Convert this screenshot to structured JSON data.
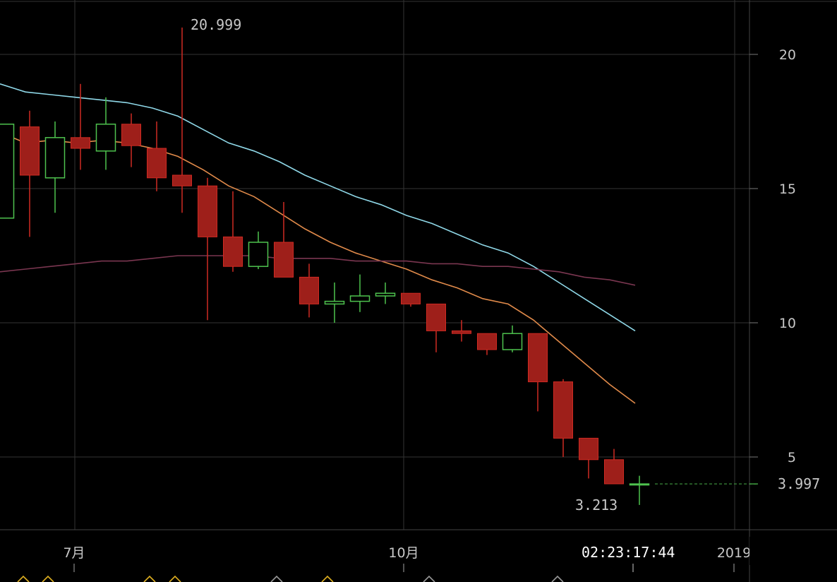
{
  "chart_data": {
    "type": "candlestick",
    "y_axis": {
      "ticks": [
        5,
        10,
        15,
        20
      ],
      "range": [
        0.3,
        22
      ]
    },
    "x_axis": {
      "labels": [
        "7月",
        "10月",
        "2019"
      ]
    },
    "candles": [
      {
        "o": 13.9,
        "h": 17.4,
        "l": 13.9,
        "c": 17.4
      },
      {
        "o": 17.3,
        "h": 17.9,
        "l": 13.2,
        "c": 15.5
      },
      {
        "o": 15.4,
        "h": 17.5,
        "l": 14.1,
        "c": 16.9
      },
      {
        "o": 16.9,
        "h": 18.9,
        "l": 15.7,
        "c": 16.5
      },
      {
        "o": 16.4,
        "h": 18.4,
        "l": 15.7,
        "c": 17.4
      },
      {
        "o": 17.4,
        "h": 17.8,
        "l": 15.8,
        "c": 16.6
      },
      {
        "o": 16.5,
        "h": 17.5,
        "l": 14.9,
        "c": 15.4
      },
      {
        "o": 15.5,
        "h": 20.999,
        "l": 14.1,
        "c": 15.1
      },
      {
        "o": 15.1,
        "h": 15.4,
        "l": 10.1,
        "c": 13.2
      },
      {
        "o": 13.2,
        "h": 14.9,
        "l": 11.9,
        "c": 12.1
      },
      {
        "o": 12.1,
        "h": 13.4,
        "l": 12.0,
        "c": 13.0
      },
      {
        "o": 13.0,
        "h": 14.5,
        "l": 11.7,
        "c": 11.7
      },
      {
        "o": 11.7,
        "h": 12.2,
        "l": 10.2,
        "c": 10.7
      },
      {
        "o": 10.7,
        "h": 11.5,
        "l": 10.0,
        "c": 10.8
      },
      {
        "o": 10.8,
        "h": 11.8,
        "l": 10.4,
        "c": 11.0
      },
      {
        "o": 11.0,
        "h": 11.5,
        "l": 10.7,
        "c": 11.1
      },
      {
        "o": 11.1,
        "h": 11.1,
        "l": 10.6,
        "c": 10.7
      },
      {
        "o": 10.7,
        "h": 10.7,
        "l": 8.9,
        "c": 9.7
      },
      {
        "o": 9.7,
        "h": 10.1,
        "l": 9.3,
        "c": 9.6
      },
      {
        "o": 9.6,
        "h": 9.6,
        "l": 8.8,
        "c": 9.0
      },
      {
        "o": 9.0,
        "h": 9.9,
        "l": 8.9,
        "c": 9.6
      },
      {
        "o": 9.6,
        "h": 9.6,
        "l": 6.7,
        "c": 7.8
      },
      {
        "o": 7.8,
        "h": 7.9,
        "l": 5.0,
        "c": 5.7
      },
      {
        "o": 5.7,
        "h": 5.7,
        "l": 4.2,
        "c": 4.9
      },
      {
        "o": 4.9,
        "h": 5.3,
        "l": 4.0,
        "c": 4.0
      },
      {
        "o": 3.997,
        "h": 4.3,
        "l": 3.213,
        "c": 3.997
      }
    ],
    "moving_averages": [
      {
        "color": "#e08a4a",
        "values": [
          17.1,
          16.7,
          16.8,
          16.7,
          16.8,
          16.7,
          16.5,
          16.2,
          15.7,
          15.1,
          14.7,
          14.1,
          13.5,
          13.0,
          12.6,
          12.3,
          12.0,
          11.6,
          11.3,
          10.9,
          10.7,
          10.1,
          9.3,
          8.5,
          7.7,
          7.0
        ]
      },
      {
        "color": "#8fd8e8",
        "values": [
          18.9,
          18.6,
          18.5,
          18.4,
          18.3,
          18.2,
          18.0,
          17.7,
          17.2,
          16.7,
          16.4,
          16.0,
          15.5,
          15.1,
          14.7,
          14.4,
          14.0,
          13.7,
          13.3,
          12.9,
          12.6,
          12.1,
          11.5,
          10.9,
          10.3,
          9.7
        ]
      },
      {
        "color": "#7a3650",
        "values": [
          11.9,
          12.0,
          12.1,
          12.2,
          12.3,
          12.3,
          12.4,
          12.5,
          12.5,
          12.5,
          12.5,
          12.4,
          12.4,
          12.4,
          12.3,
          12.3,
          12.3,
          12.2,
          12.2,
          12.1,
          12.1,
          12.0,
          11.9,
          11.7,
          11.6,
          11.4
        ]
      }
    ],
    "annotations": {
      "high_label": "20.999",
      "low_label": "3.213",
      "last_price": "3.997",
      "countdown": "02:23:17:44"
    },
    "colors": {
      "up": "#4ec24e",
      "down": "#9e1f1a",
      "down_wick": "#cf2a22",
      "grid": "#333333",
      "last_price_line": "#3a8a3a"
    }
  }
}
